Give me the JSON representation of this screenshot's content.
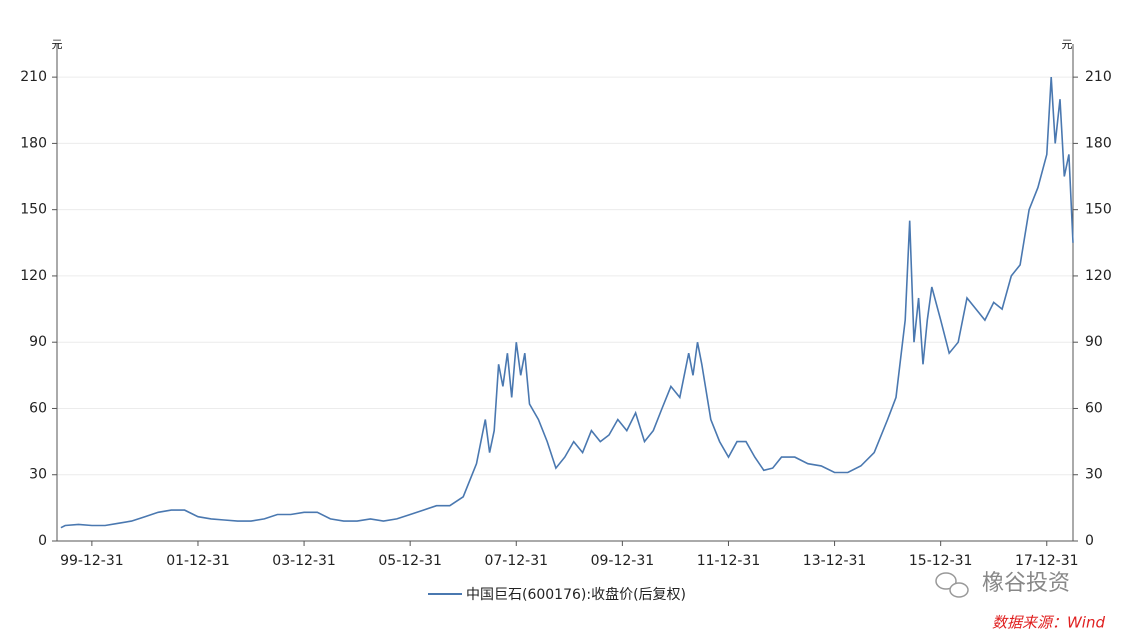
{
  "chart_data": {
    "type": "line",
    "ylabel": "元",
    "y2label": "元",
    "x": [
      "99-05-31",
      "99-06-30",
      "99-09-30",
      "99-12-31",
      "00-03-31",
      "00-06-30",
      "00-09-30",
      "00-12-31",
      "01-03-31",
      "01-06-30",
      "01-09-30",
      "01-12-31",
      "02-03-31",
      "02-06-30",
      "02-09-30",
      "02-12-31",
      "03-03-31",
      "03-06-30",
      "03-09-30",
      "03-12-31",
      "04-03-31",
      "04-06-30",
      "04-09-30",
      "04-12-31",
      "05-03-31",
      "05-06-30",
      "05-09-30",
      "05-12-31",
      "06-03-31",
      "06-06-30",
      "06-09-30",
      "06-12-31",
      "07-03-31",
      "07-05-31",
      "07-06-30",
      "07-07-31",
      "07-08-31",
      "07-09-30",
      "07-10-31",
      "07-11-30",
      "07-12-31",
      "08-01-31",
      "08-02-29",
      "08-03-31",
      "08-05-31",
      "08-07-31",
      "08-09-30",
      "08-11-30",
      "09-01-31",
      "09-03-31",
      "09-05-31",
      "09-07-31",
      "09-09-30",
      "09-11-30",
      "10-01-31",
      "10-03-31",
      "10-05-31",
      "10-07-31",
      "10-09-30",
      "10-11-30",
      "11-01-31",
      "11-03-31",
      "11-04-30",
      "11-05-31",
      "11-06-30",
      "11-08-31",
      "11-10-31",
      "11-12-31",
      "12-02-29",
      "12-04-30",
      "12-06-30",
      "12-08-31",
      "12-10-31",
      "12-12-31",
      "13-03-31",
      "13-06-30",
      "13-09-30",
      "13-12-31",
      "14-03-31",
      "14-06-30",
      "14-09-30",
      "14-12-31",
      "15-02-28",
      "15-04-30",
      "15-05-31",
      "15-06-30",
      "15-07-31",
      "15-08-31",
      "15-09-30",
      "15-10-31",
      "15-12-31",
      "16-02-29",
      "16-04-30",
      "16-06-30",
      "16-08-31",
      "16-10-31",
      "16-12-31",
      "17-02-28",
      "17-04-30",
      "17-06-30",
      "17-08-31",
      "17-10-31",
      "17-12-31",
      "18-01-31",
      "18-02-28",
      "18-03-31",
      "18-04-30",
      "18-05-31",
      "18-06-29"
    ],
    "series": [
      {
        "name": "中国巨石(600176):收盘价(后复权)",
        "color": "#4a78b0",
        "values": [
          6,
          7,
          7.5,
          7,
          7,
          8,
          9,
          11,
          13,
          14,
          14,
          11,
          10,
          9.5,
          9,
          9,
          10,
          12,
          12,
          13,
          13,
          10,
          9,
          9,
          10,
          9,
          10,
          12,
          14,
          16,
          16,
          20,
          35,
          55,
          40,
          50,
          80,
          70,
          85,
          65,
          90,
          75,
          85,
          62,
          55,
          45,
          33,
          38,
          45,
          40,
          50,
          45,
          48,
          55,
          50,
          58,
          45,
          50,
          60,
          70,
          65,
          85,
          75,
          90,
          80,
          55,
          45,
          38,
          45,
          45,
          38,
          32,
          33,
          38,
          38,
          35,
          34,
          31,
          31,
          34,
          40,
          55,
          65,
          100,
          145,
          90,
          110,
          80,
          100,
          115,
          100,
          85,
          90,
          110,
          105,
          100,
          108,
          105,
          120,
          125,
          150,
          160,
          175,
          210,
          180,
          200,
          165,
          175,
          135
        ]
      }
    ],
    "xlim": [
      "99-05-04",
      "18-06-29"
    ],
    "xticks": [
      "99-12-31",
      "01-12-31",
      "03-12-31",
      "05-12-31",
      "07-12-31",
      "09-12-31",
      "11-12-31",
      "13-12-31",
      "15-12-31",
      "17-12-31"
    ],
    "ylim": [
      0,
      225
    ],
    "yticks": [
      0,
      30,
      60,
      90,
      120,
      150,
      180,
      210
    ],
    "y2lim": [
      0,
      225
    ],
    "y2ticks": [
      0,
      30,
      60,
      90,
      120,
      150,
      180,
      210
    ],
    "grid": true
  },
  "watermark": "橡谷投资",
  "source": "数据来源：Wind"
}
